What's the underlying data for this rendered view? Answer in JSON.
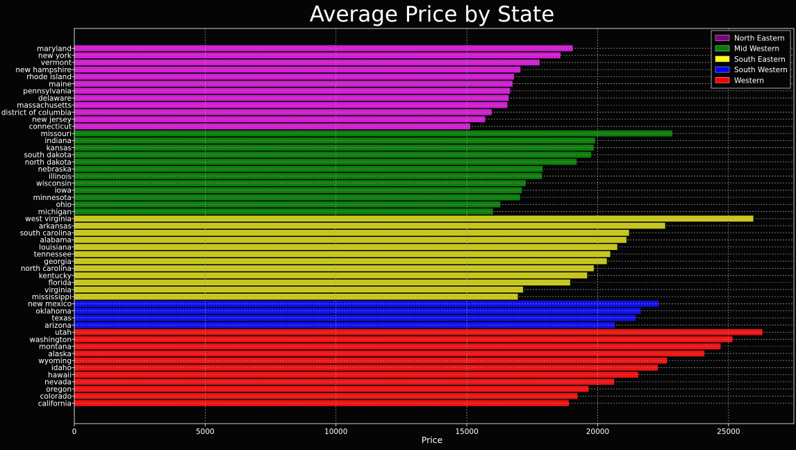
{
  "chart_data": {
    "type": "bar",
    "orientation": "horizontal",
    "title": "Average Price by State",
    "xlabel": "Price",
    "ylabel": "",
    "xlim": [
      0,
      27500
    ],
    "xticks": [
      0,
      5000,
      10000,
      15000,
      20000,
      25000
    ],
    "grid": true,
    "legend_position": "top-right",
    "regions": [
      {
        "name": "North Eastern",
        "legend_color": "#800080",
        "bar_color": "#d21fd2"
      },
      {
        "name": "Mid Western",
        "legend_color": "#008000",
        "bar_color": "#0c800c"
      },
      {
        "name": "South Eastern",
        "legend_color": "#ffff00",
        "bar_color": "#c9c91c"
      },
      {
        "name": "South Western",
        "legend_color": "#0000ff",
        "bar_color": "#1010f0"
      },
      {
        "name": "Western",
        "legend_color": "#ff0000",
        "bar_color": "#f01414"
      }
    ],
    "bars": [
      {
        "state": "maryland",
        "value": 19050,
        "region": "North Eastern"
      },
      {
        "state": "new york",
        "value": 18580,
        "region": "North Eastern"
      },
      {
        "state": "vermont",
        "value": 17780,
        "region": "North Eastern"
      },
      {
        "state": "new hampshire",
        "value": 17050,
        "region": "North Eastern"
      },
      {
        "state": "rhode island",
        "value": 16800,
        "region": "North Eastern"
      },
      {
        "state": "maine",
        "value": 16750,
        "region": "North Eastern"
      },
      {
        "state": "pennsylvania",
        "value": 16650,
        "region": "North Eastern"
      },
      {
        "state": "delaware",
        "value": 16600,
        "region": "North Eastern"
      },
      {
        "state": "massachusetts",
        "value": 16550,
        "region": "North Eastern"
      },
      {
        "state": "district of columbia",
        "value": 15950,
        "region": "North Eastern"
      },
      {
        "state": "new jersey",
        "value": 15700,
        "region": "North Eastern"
      },
      {
        "state": "connecticut",
        "value": 15130,
        "region": "North Eastern"
      },
      {
        "state": "missouri",
        "value": 22850,
        "region": "Mid Western"
      },
      {
        "state": "indiana",
        "value": 19900,
        "region": "Mid Western"
      },
      {
        "state": "kansas",
        "value": 19850,
        "region": "Mid Western"
      },
      {
        "state": "south dakota",
        "value": 19750,
        "region": "Mid Western"
      },
      {
        "state": "north dakota",
        "value": 19200,
        "region": "Mid Western"
      },
      {
        "state": "nebraska",
        "value": 17900,
        "region": "Mid Western"
      },
      {
        "state": "illinois",
        "value": 17870,
        "region": "Mid Western"
      },
      {
        "state": "wisconsin",
        "value": 17250,
        "region": "Mid Western"
      },
      {
        "state": "iowa",
        "value": 17100,
        "region": "Mid Western"
      },
      {
        "state": "minnesota",
        "value": 17030,
        "region": "Mid Western"
      },
      {
        "state": "ohio",
        "value": 16280,
        "region": "Mid Western"
      },
      {
        "state": "michigan",
        "value": 16000,
        "region": "Mid Western"
      },
      {
        "state": "west virginia",
        "value": 25950,
        "region": "South Eastern"
      },
      {
        "state": "arkansas",
        "value": 22580,
        "region": "South Eastern"
      },
      {
        "state": "south carolina",
        "value": 21200,
        "region": "South Eastern"
      },
      {
        "state": "alabama",
        "value": 21100,
        "region": "South Eastern"
      },
      {
        "state": "louisiana",
        "value": 20750,
        "region": "South Eastern"
      },
      {
        "state": "tennessee",
        "value": 20480,
        "region": "South Eastern"
      },
      {
        "state": "georgia",
        "value": 20350,
        "region": "South Eastern"
      },
      {
        "state": "north carolina",
        "value": 19850,
        "region": "South Eastern"
      },
      {
        "state": "kentucky",
        "value": 19600,
        "region": "South Eastern"
      },
      {
        "state": "florida",
        "value": 18950,
        "region": "South Eastern"
      },
      {
        "state": "virginia",
        "value": 17150,
        "region": "South Eastern"
      },
      {
        "state": "mississippi",
        "value": 16950,
        "region": "South Eastern"
      },
      {
        "state": "new mexico",
        "value": 22330,
        "region": "South Western"
      },
      {
        "state": "oklahoma",
        "value": 21650,
        "region": "South Western"
      },
      {
        "state": "texas",
        "value": 21450,
        "region": "South Western"
      },
      {
        "state": "arizona",
        "value": 20650,
        "region": "South Western"
      },
      {
        "state": "utah",
        "value": 26300,
        "region": "Western"
      },
      {
        "state": "washington",
        "value": 25150,
        "region": "Western"
      },
      {
        "state": "montana",
        "value": 24700,
        "region": "Western"
      },
      {
        "state": "alaska",
        "value": 24080,
        "region": "Western"
      },
      {
        "state": "wyoming",
        "value": 22650,
        "region": "Western"
      },
      {
        "state": "idaho",
        "value": 22300,
        "region": "Western"
      },
      {
        "state": "hawaii",
        "value": 21550,
        "region": "Western"
      },
      {
        "state": "nevada",
        "value": 20630,
        "region": "Western"
      },
      {
        "state": "oregon",
        "value": 19650,
        "region": "Western"
      },
      {
        "state": "colorado",
        "value": 19230,
        "region": "Western"
      },
      {
        "state": "california",
        "value": 18900,
        "region": "Western"
      }
    ]
  }
}
